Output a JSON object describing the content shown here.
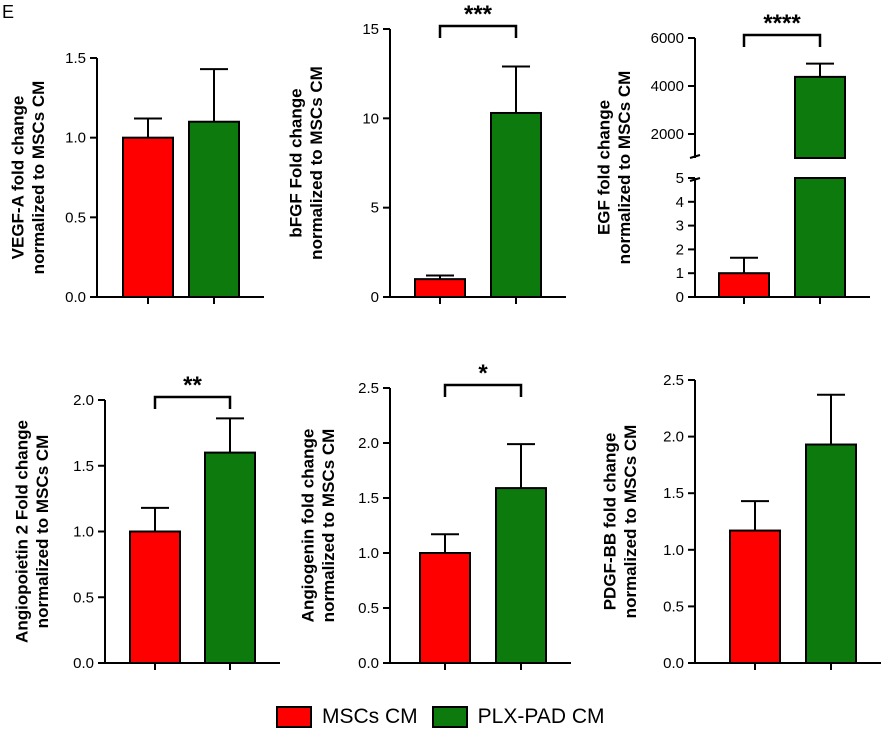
{
  "panel_label": "E",
  "colors": {
    "mscs": "#ff0000",
    "plx": "#0d7a0d"
  },
  "legend": {
    "items": [
      {
        "label": "MSCs CM",
        "color": "#ff0000"
      },
      {
        "label": "PLX-PAD CM",
        "color": "#0d7a0d"
      }
    ]
  },
  "chart_data": [
    {
      "type": "bar",
      "ylabel": [
        "VEGF-A fold change",
        "normalized to MSCs CM"
      ],
      "categories": [
        "MSCs CM",
        "PLX-PAD CM"
      ],
      "values": [
        1.0,
        1.1
      ],
      "errors": [
        0.12,
        0.33
      ],
      "ylim": [
        0,
        1.5
      ],
      "yticks": [
        0.0,
        0.5,
        1.0,
        1.5
      ],
      "tick_labels": [
        "0.0",
        "0.5",
        "1.0",
        "1.5"
      ],
      "significance": ""
    },
    {
      "type": "bar",
      "ylabel": [
        "bFGF Fold change",
        "normalized to MSCs CM"
      ],
      "categories": [
        "MSCs CM",
        "PLX-PAD CM"
      ],
      "values": [
        1.0,
        10.3
      ],
      "errors": [
        0.2,
        2.6
      ],
      "ylim": [
        0,
        15
      ],
      "yticks": [
        0,
        5,
        10,
        15
      ],
      "tick_labels": [
        "0",
        "5",
        "10",
        "15"
      ],
      "significance": "***"
    },
    {
      "type": "bar",
      "ylabel": [
        "EGF fold change",
        "normalized to MSCs CM"
      ],
      "categories": [
        "MSCs CM",
        "PLX-PAD CM"
      ],
      "values": [
        1.0,
        4380
      ],
      "errors": [
        0.65,
        550
      ],
      "broken_axis": true,
      "lower_range": [
        0,
        5
      ],
      "upper_range": [
        1000,
        6000
      ],
      "lower_ticks": [
        0,
        1,
        2,
        3,
        4,
        5
      ],
      "upper_ticks": [
        2000,
        4000,
        6000
      ],
      "tick_labels_lower": [
        "0",
        "1",
        "2",
        "3",
        "4",
        "5"
      ],
      "tick_labels_upper": [
        "2000",
        "4000",
        "6000"
      ],
      "significance": "****"
    },
    {
      "type": "bar",
      "ylabel": [
        "Angiopoietin 2 Fold change",
        "normalized to MSCs CM"
      ],
      "categories": [
        "MSCs CM",
        "PLX-PAD CM"
      ],
      "values": [
        1.0,
        1.6
      ],
      "errors": [
        0.18,
        0.26
      ],
      "ylim": [
        0,
        2.0
      ],
      "yticks": [
        0.0,
        0.5,
        1.0,
        1.5,
        2.0
      ],
      "tick_labels": [
        "0.0",
        "0.5",
        "1.0",
        "1.5",
        "2.0"
      ],
      "significance": "**"
    },
    {
      "type": "bar",
      "ylabel": [
        "Angiogenin fold change",
        "normalized to MSCs CM"
      ],
      "categories": [
        "MSCs CM",
        "PLX-PAD CM"
      ],
      "values": [
        1.0,
        1.59
      ],
      "errors": [
        0.17,
        0.4
      ],
      "ylim": [
        0,
        2.5
      ],
      "yticks": [
        0.0,
        0.5,
        1.0,
        1.5,
        2.0,
        2.5
      ],
      "tick_labels": [
        "0.0",
        "0.5",
        "1.0",
        "1.5",
        "2.0",
        "2.5"
      ],
      "significance": "*"
    },
    {
      "type": "bar",
      "ylabel": [
        "PDGF-BB fold change",
        "normalized to MSCs CM"
      ],
      "categories": [
        "MSCs CM",
        "PLX-PAD CM"
      ],
      "values": [
        1.17,
        1.93
      ],
      "errors": [
        0.26,
        0.44
      ],
      "ylim": [
        0,
        2.5
      ],
      "yticks": [
        0.0,
        0.5,
        1.0,
        1.5,
        2.0,
        2.5
      ],
      "tick_labels": [
        "0.0",
        "0.5",
        "1.0",
        "1.5",
        "2.0",
        "2.5"
      ],
      "significance": ""
    }
  ]
}
